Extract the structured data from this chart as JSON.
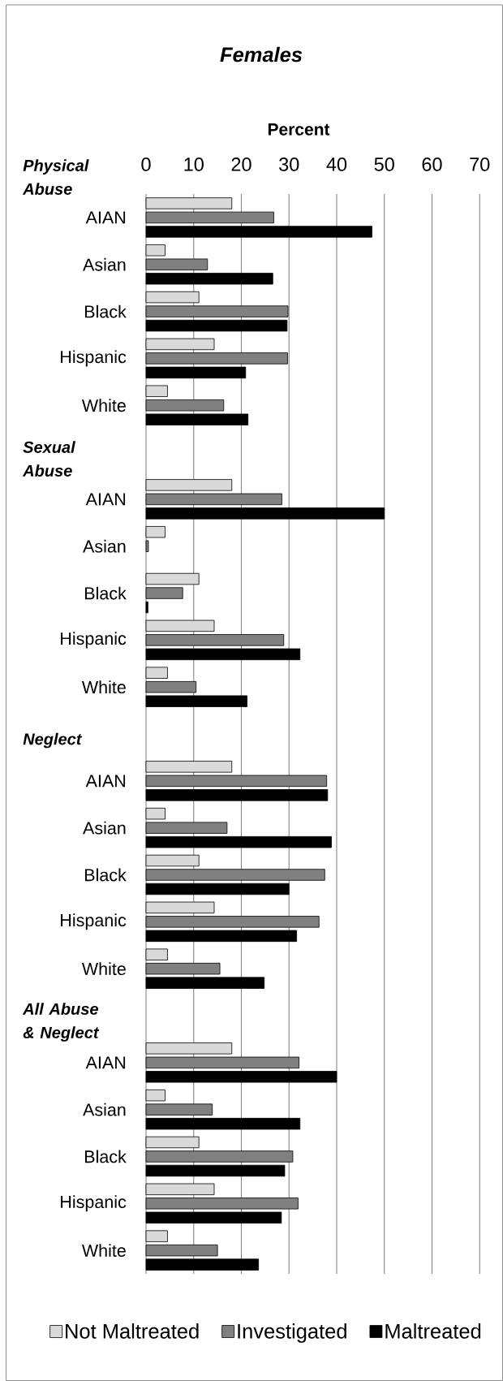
{
  "chart_data": {
    "type": "bar",
    "orientation": "horizontal",
    "title": "Females",
    "xlabel": "Percent",
    "categories": [
      null,
      "AIAN",
      "Asian",
      "Black",
      "Hispanic",
      "White",
      null,
      "AIAN",
      "Asian",
      "Black",
      "Hispanic",
      "White",
      null,
      "AIAN",
      "Asian",
      "Black",
      "Hispanic",
      "White",
      null,
      "AIAN",
      "Asian",
      "Black",
      "Hispanic",
      "White"
    ],
    "series": [
      {
        "name": "Not Maltreated",
        "color": "#d9d9d9",
        "values": [
          null,
          18.0,
          4.0,
          11.1,
          14.3,
          4.5,
          null,
          18.0,
          4.0,
          11.1,
          14.3,
          4.5,
          null,
          18.0,
          4.0,
          11.1,
          14.3,
          4.5,
          null,
          18.0,
          4.0,
          11.1,
          14.3,
          4.5
        ]
      },
      {
        "name": "Investigated",
        "color": "#808080",
        "values": [
          null,
          26.8,
          12.9,
          29.8,
          29.7,
          16.3,
          null,
          28.5,
          0.5,
          7.7,
          28.9,
          10.5,
          null,
          37.9,
          17.0,
          37.5,
          36.3,
          15.5,
          null,
          32.1,
          13.9,
          30.8,
          31.9,
          15.0
        ]
      },
      {
        "name": "Maltreated",
        "color": "#000000",
        "values": [
          null,
          47.4,
          26.6,
          29.6,
          20.9,
          21.4,
          null,
          50.0,
          null,
          0.4,
          32.3,
          21.2,
          null,
          38.1,
          38.9,
          30.0,
          31.6,
          24.8,
          null,
          40.0,
          32.3,
          29.1,
          28.4,
          23.6
        ]
      }
    ],
    "annotations": [
      "Physical Abuse",
      "Sexual Abuse",
      "Neglect",
      "All Abuse & Neglect"
    ],
    "xlim": [
      0,
      70
    ],
    "xticks": [
      0,
      10,
      20,
      30,
      40,
      50,
      60,
      70
    ],
    "grid": "x",
    "legend": "bottom"
  }
}
